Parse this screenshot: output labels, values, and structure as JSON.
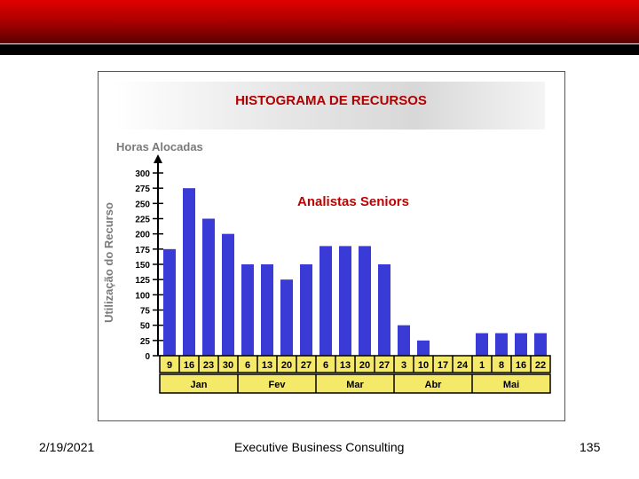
{
  "footer": {
    "date": "2/19/2021",
    "company": "Executive Business Consulting",
    "page": "135"
  },
  "colors": {
    "header_red": "#c00000",
    "bar": "#3a3ad6",
    "tick_box": "#f5e96a"
  },
  "chart_data": {
    "type": "bar",
    "title": "HISTOGRAMA DE RECURSOS",
    "ylabel": "Utilização do Recurso",
    "y_axis_title": "Horas Alocadas",
    "annotation": "Analistas Seniors",
    "ylim": [
      0,
      300
    ],
    "yticks": [
      0,
      25,
      50,
      75,
      100,
      125,
      150,
      175,
      200,
      225,
      250,
      275,
      300
    ],
    "categories": [
      "9",
      "16",
      "23",
      "30",
      "6",
      "13",
      "20",
      "27",
      "6",
      "13",
      "20",
      "27",
      "3",
      "10",
      "17",
      "24",
      "1",
      "8",
      "16",
      "22"
    ],
    "values": [
      175,
      275,
      225,
      200,
      150,
      150,
      125,
      150,
      180,
      180,
      180,
      150,
      50,
      25,
      0,
      0,
      37,
      37,
      37,
      37
    ],
    "months": [
      {
        "label": "Jan",
        "span": 4
      },
      {
        "label": "Fev",
        "span": 4
      },
      {
        "label": "Mar",
        "span": 4
      },
      {
        "label": "Abr",
        "span": 4
      },
      {
        "label": "Mai",
        "span": 4
      }
    ],
    "grid": false
  }
}
